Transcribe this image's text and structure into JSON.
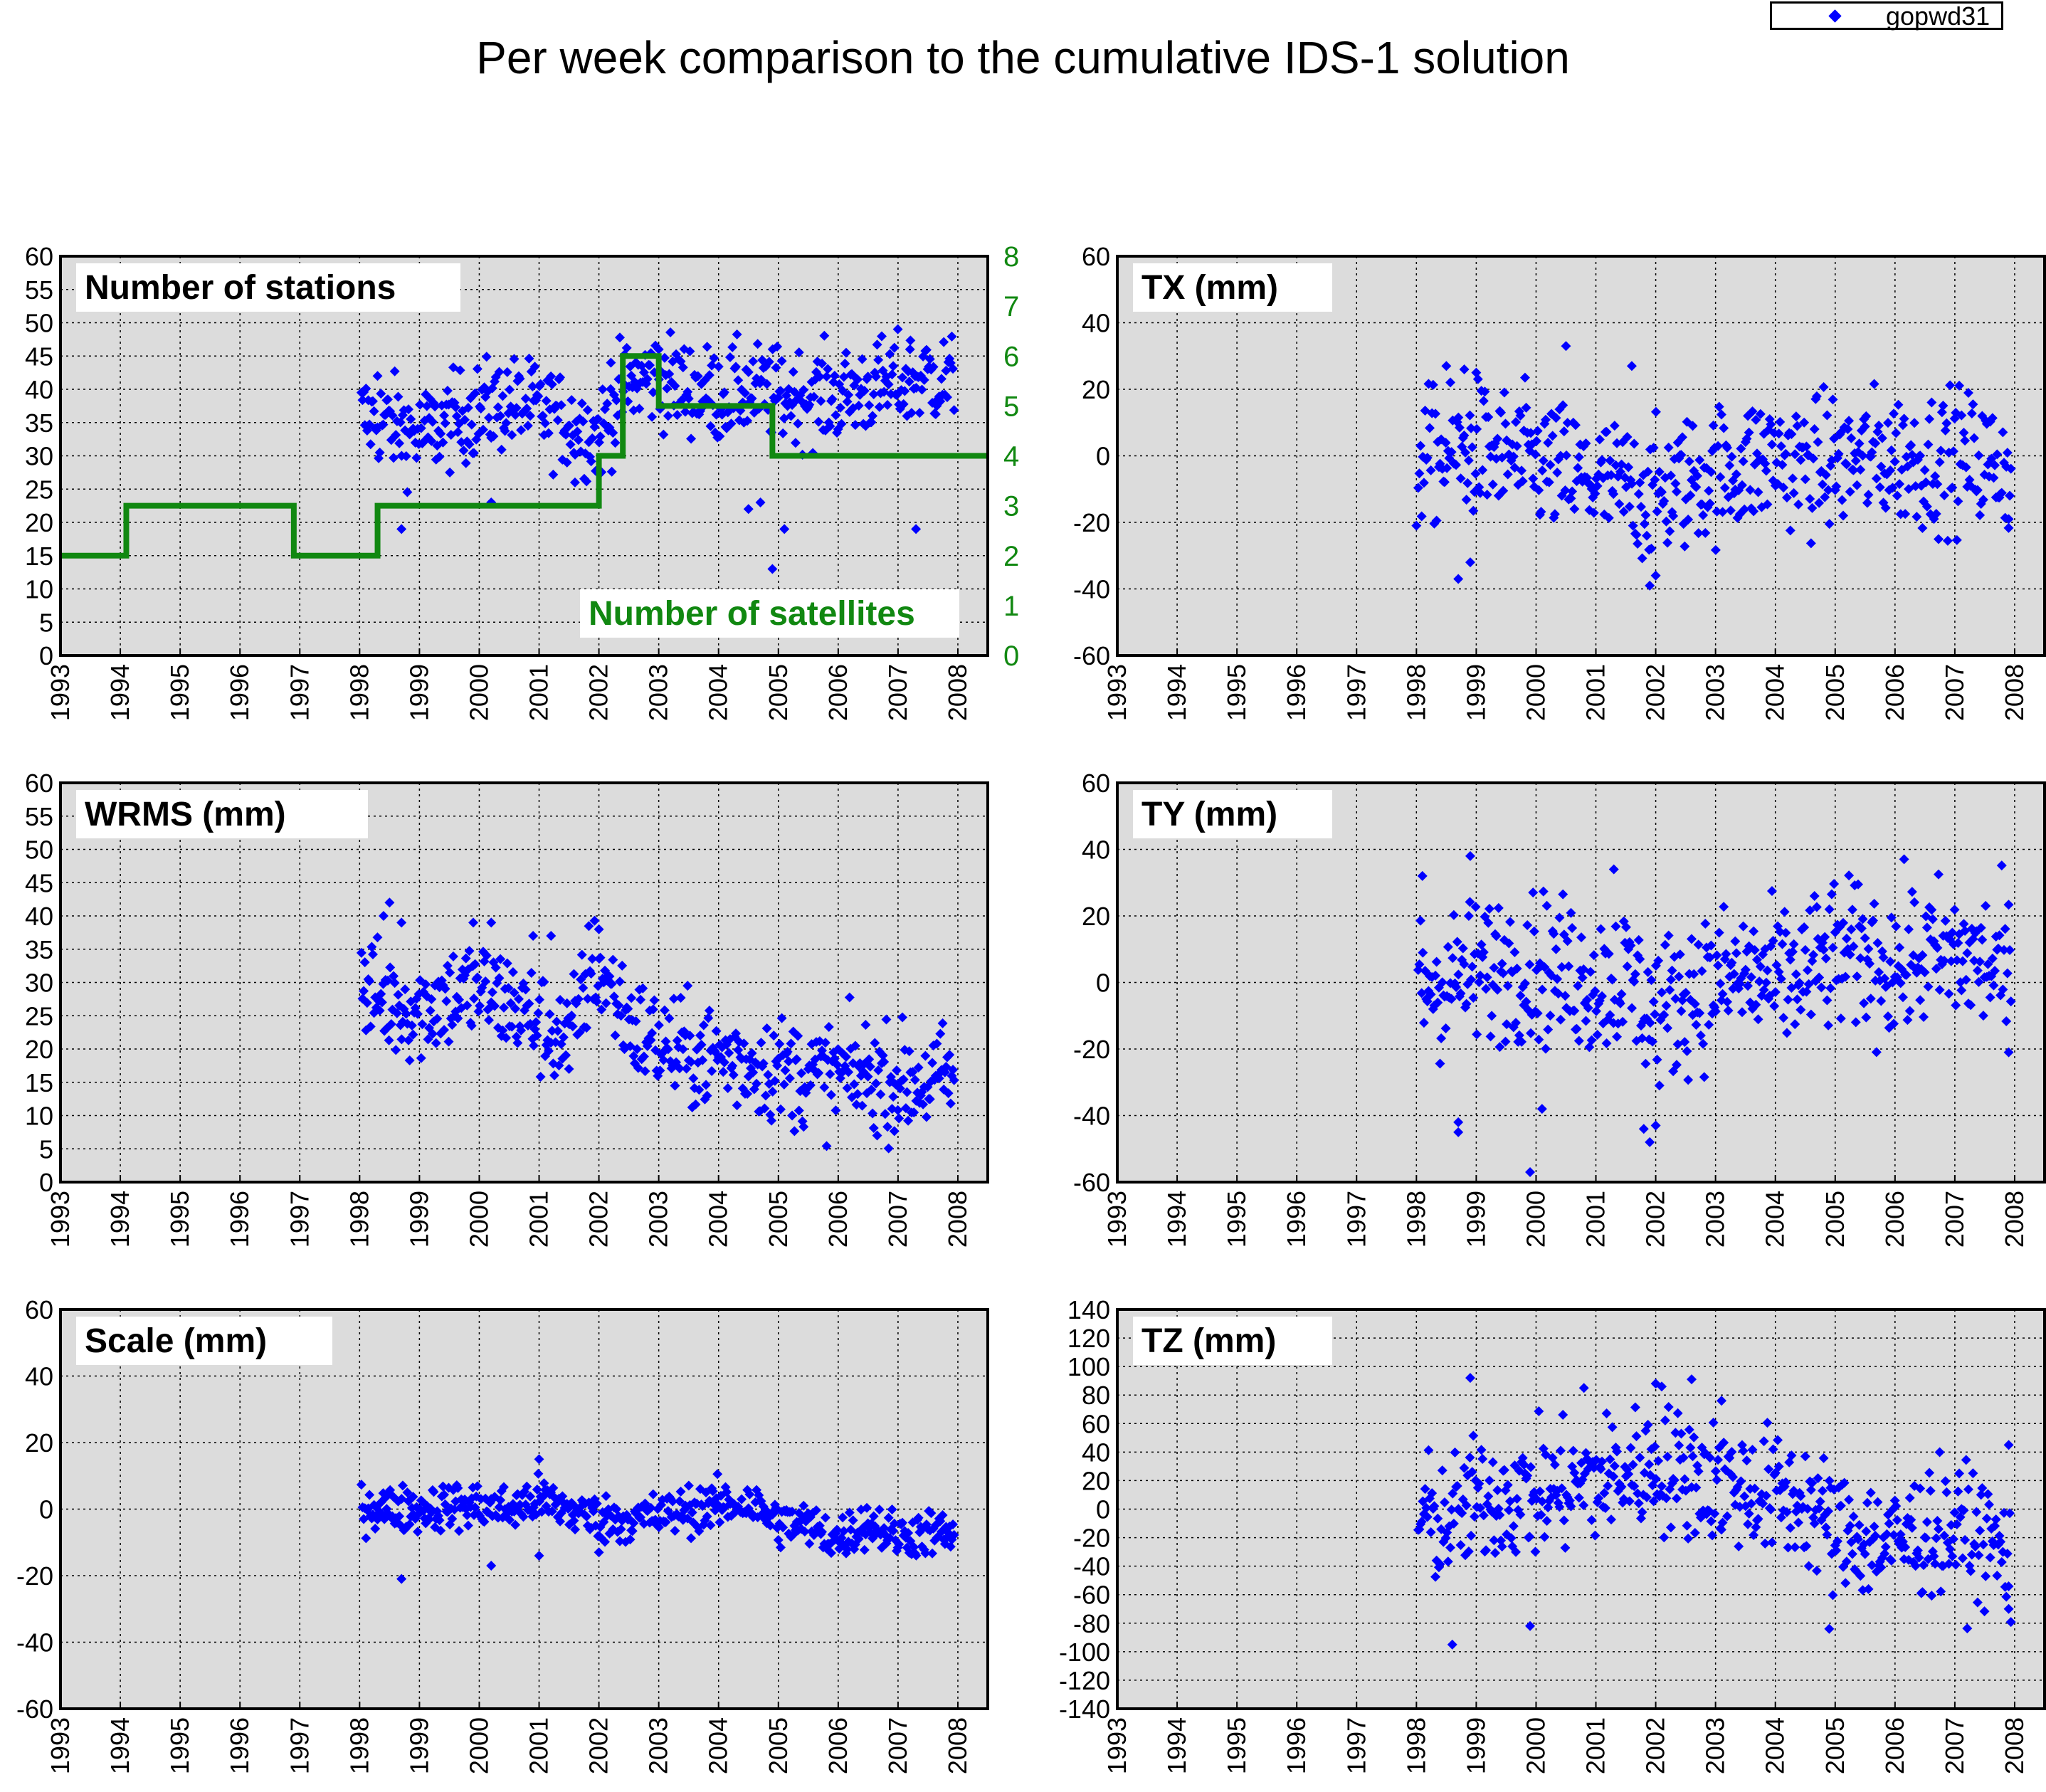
{
  "title": "Per week comparison to the cumulative IDS-1 solution",
  "legend": {
    "label": "gopwd31",
    "marker_color": "#0000ff",
    "marker": "diamond"
  },
  "colors": {
    "series": "#0000ff",
    "satellites": "#118811",
    "plot_bg": "#dcdcdc",
    "grid": "#000000"
  },
  "chart_data": [
    {
      "type": "scatter",
      "label": "Number of stations",
      "xlim": [
        1993,
        2008.5
      ],
      "xticks": [
        "1993",
        "1994",
        "1995",
        "1996",
        "1997",
        "1998",
        "1999",
        "2000",
        "2001",
        "2002",
        "2003",
        "2004",
        "2005",
        "2006",
        "2007",
        "2008"
      ],
      "ylim": [
        0,
        60
      ],
      "yticks": [
        "0",
        "5",
        "10",
        "15",
        "20",
        "25",
        "30",
        "35",
        "40",
        "45",
        "50",
        "55",
        "60"
      ],
      "trend": [
        [
          1998.0,
          36
        ],
        [
          1998.5,
          35
        ],
        [
          1999.0,
          33
        ],
        [
          1999.5,
          35
        ],
        [
          2000.0,
          37
        ],
        [
          2000.5,
          38
        ],
        [
          2001.0,
          37
        ],
        [
          2001.5,
          35
        ],
        [
          2002.0,
          33
        ],
        [
          2002.4,
          40
        ],
        [
          2002.8,
          42
        ],
        [
          2003.2,
          41
        ],
        [
          2003.6,
          40
        ],
        [
          2004.0,
          39
        ],
        [
          2004.5,
          40
        ],
        [
          2005.0,
          39
        ],
        [
          2005.5,
          39
        ],
        [
          2006.0,
          39
        ],
        [
          2006.5,
          40
        ],
        [
          2007.0,
          41
        ],
        [
          2007.5,
          42
        ],
        [
          2007.9,
          41
        ]
      ],
      "scatter_spread": 3.5,
      "outliers": [
        [
          1998.7,
          19
        ],
        [
          2000.2,
          23
        ],
        [
          2004.5,
          22
        ],
        [
          2004.7,
          23
        ],
        [
          2004.9,
          13
        ],
        [
          2005.1,
          19
        ],
        [
          2007.3,
          19
        ],
        [
          2001.6,
          26
        ],
        [
          1998.3,
          42
        ],
        [
          2002.2,
          44
        ],
        [
          2003.0,
          46
        ],
        [
          2007.2,
          46
        ]
      ],
      "secondary": {
        "label": "Number of satellites",
        "ylim": [
          0,
          8
        ],
        "yticks": [
          "0",
          "1",
          "2",
          "3",
          "4",
          "5",
          "6",
          "7",
          "8"
        ],
        "steps": [
          [
            1993.0,
            2
          ],
          [
            1994.1,
            3
          ],
          [
            1996.9,
            2
          ],
          [
            1998.3,
            3
          ],
          [
            2002.0,
            4
          ],
          [
            2002.4,
            6
          ],
          [
            2003.0,
            5
          ],
          [
            2004.9,
            4
          ],
          [
            2008.5,
            4
          ]
        ]
      }
    },
    {
      "type": "scatter",
      "label": "TX (mm)",
      "xlim": [
        1993,
        2008.5
      ],
      "xticks": [
        "1993",
        "1994",
        "1995",
        "1996",
        "1997",
        "1998",
        "1999",
        "2000",
        "2001",
        "2002",
        "2003",
        "2004",
        "2005",
        "2006",
        "2007",
        "2008"
      ],
      "ylim": [
        -60,
        60
      ],
      "yticks": [
        "-60",
        "-40",
        "-20",
        "0",
        "20",
        "40",
        "60"
      ],
      "trend": [
        [
          1998.0,
          0
        ],
        [
          1998.5,
          0
        ],
        [
          1999.0,
          2
        ],
        [
          1999.5,
          0
        ],
        [
          2000.0,
          -2
        ],
        [
          2000.5,
          -5
        ],
        [
          2001.0,
          -8
        ],
        [
          2001.5,
          -10
        ],
        [
          2002.0,
          -12
        ],
        [
          2002.5,
          -8
        ],
        [
          2003.0,
          -5
        ],
        [
          2003.5,
          -3
        ],
        [
          2004.0,
          0
        ],
        [
          2004.5,
          -3
        ],
        [
          2005.0,
          -2
        ],
        [
          2005.5,
          -1
        ],
        [
          2006.0,
          0
        ],
        [
          2006.5,
          -2
        ],
        [
          2007.0,
          0
        ],
        [
          2007.5,
          -2
        ],
        [
          2007.9,
          -3
        ]
      ],
      "scatter_spread": 10,
      "outliers": [
        [
          1998.5,
          27
        ],
        [
          1998.8,
          26
        ],
        [
          1999.0,
          25
        ],
        [
          2000.5,
          33
        ],
        [
          2001.6,
          27
        ],
        [
          1998.7,
          -37
        ],
        [
          1998.9,
          -32
        ],
        [
          2001.9,
          -39
        ],
        [
          2002.0,
          -36
        ],
        [
          1998.0,
          -21
        ],
        [
          2007.9,
          -19
        ]
      ]
    },
    {
      "type": "scatter",
      "label": "WRMS (mm)",
      "xlim": [
        1993,
        2008.5
      ],
      "xticks": [
        "1993",
        "1994",
        "1995",
        "1996",
        "1997",
        "1998",
        "1999",
        "2000",
        "2001",
        "2002",
        "2003",
        "2004",
        "2005",
        "2006",
        "2007",
        "2008"
      ],
      "ylim": [
        0,
        60
      ],
      "yticks": [
        "0",
        "5",
        "10",
        "15",
        "20",
        "25",
        "30",
        "35",
        "40",
        "45",
        "50",
        "55",
        "60"
      ],
      "trend": [
        [
          1998.0,
          29
        ],
        [
          1998.5,
          27
        ],
        [
          1999.0,
          26
        ],
        [
          1999.5,
          28
        ],
        [
          2000.0,
          29
        ],
        [
          2000.5,
          27
        ],
        [
          2001.0,
          24
        ],
        [
          2001.5,
          21
        ],
        [
          2001.9,
          33
        ],
        [
          2002.2,
          29
        ],
        [
          2002.6,
          23
        ],
        [
          2003.0,
          21
        ],
        [
          2003.5,
          19
        ],
        [
          2004.0,
          19
        ],
        [
          2004.5,
          18
        ],
        [
          2005.0,
          17
        ],
        [
          2005.5,
          16
        ],
        [
          2006.0,
          16
        ],
        [
          2006.5,
          16
        ],
        [
          2007.0,
          15
        ],
        [
          2007.5,
          15
        ],
        [
          2007.9,
          16
        ]
      ],
      "scatter_spread": 4,
      "outliers": [
        [
          1998.4,
          40
        ],
        [
          1998.5,
          42
        ],
        [
          1998.7,
          39
        ],
        [
          1999.9,
          39
        ],
        [
          2000.2,
          39
        ],
        [
          2000.9,
          37
        ],
        [
          2001.2,
          37
        ],
        [
          2002.0,
          38
        ],
        [
          2001.5,
          17
        ],
        [
          2006.9,
          11
        ]
      ]
    },
    {
      "type": "scatter",
      "label": "TY (mm)",
      "xlim": [
        1993,
        2008.5
      ],
      "xticks": [
        "1993",
        "1994",
        "1995",
        "1996",
        "1997",
        "1998",
        "1999",
        "2000",
        "2001",
        "2002",
        "2003",
        "2004",
        "2005",
        "2006",
        "2007",
        "2008"
      ],
      "ylim": [
        -60,
        60
      ],
      "yticks": [
        "-60",
        "-40",
        "-20",
        "0",
        "20",
        "40",
        "60"
      ],
      "trend": [
        [
          1998.0,
          0
        ],
        [
          1998.5,
          0
        ],
        [
          1999.0,
          3
        ],
        [
          1999.5,
          5
        ],
        [
          2000.0,
          5
        ],
        [
          2000.5,
          3
        ],
        [
          2001.0,
          0
        ],
        [
          2001.5,
          2
        ],
        [
          2002.0,
          -10
        ],
        [
          2002.5,
          -3
        ],
        [
          2003.0,
          0
        ],
        [
          2003.5,
          2
        ],
        [
          2004.0,
          0
        ],
        [
          2004.5,
          3
        ],
        [
          2005.0,
          8
        ],
        [
          2005.5,
          8
        ],
        [
          2006.0,
          5
        ],
        [
          2006.5,
          8
        ],
        [
          2007.0,
          8
        ],
        [
          2007.5,
          6
        ],
        [
          2007.9,
          3
        ]
      ],
      "scatter_spread": 11,
      "outliers": [
        [
          1998.1,
          32
        ],
        [
          1998.9,
          38
        ],
        [
          2001.3,
          34
        ],
        [
          1998.7,
          -42
        ],
        [
          1998.7,
          -45
        ],
        [
          1999.9,
          -57
        ],
        [
          2001.9,
          -48
        ],
        [
          2001.8,
          -44
        ],
        [
          2002.0,
          -43
        ],
        [
          2000.1,
          -38
        ],
        [
          2007.9,
          -21
        ]
      ]
    },
    {
      "type": "scatter",
      "label": "Scale (mm)",
      "xlim": [
        1993,
        2008.5
      ],
      "xticks": [
        "1993",
        "1994",
        "1995",
        "1996",
        "1997",
        "1998",
        "1999",
        "2000",
        "2001",
        "2002",
        "2003",
        "2004",
        "2005",
        "2006",
        "2007",
        "2008"
      ],
      "ylim": [
        -60,
        60
      ],
      "yticks": [
        "-60",
        "-40",
        "-20",
        "0",
        "20",
        "40",
        "60"
      ],
      "trend": [
        [
          1998.0,
          1
        ],
        [
          1998.5,
          0
        ],
        [
          1999.0,
          0
        ],
        [
          1999.5,
          1
        ],
        [
          2000.0,
          1
        ],
        [
          2000.5,
          0
        ],
        [
          2001.0,
          3
        ],
        [
          2001.5,
          0
        ],
        [
          2002.0,
          -3
        ],
        [
          2002.5,
          -3
        ],
        [
          2003.0,
          -2
        ],
        [
          2003.5,
          0
        ],
        [
          2004.0,
          1
        ],
        [
          2004.5,
          2
        ],
        [
          2005.0,
          -4
        ],
        [
          2005.5,
          -5
        ],
        [
          2006.0,
          -9
        ],
        [
          2006.5,
          -4
        ],
        [
          2007.0,
          -8
        ],
        [
          2007.5,
          -7
        ],
        [
          2007.9,
          -8
        ]
      ],
      "scatter_spread": 3.5,
      "outliers": [
        [
          1998.7,
          -21
        ],
        [
          2000.2,
          -17
        ],
        [
          2001.0,
          15
        ],
        [
          2001.0,
          -14
        ],
        [
          2002.0,
          -13
        ]
      ]
    },
    {
      "type": "scatter",
      "label": "TZ (mm)",
      "xlim": [
        1993,
        2008.5
      ],
      "xticks": [
        "1993",
        "1994",
        "1995",
        "1996",
        "1997",
        "1998",
        "1999",
        "2000",
        "2001",
        "2002",
        "2003",
        "2004",
        "2005",
        "2006",
        "2007",
        "2008"
      ],
      "ylim": [
        -140,
        140
      ],
      "yticks": [
        "-140",
        "-120",
        "-100",
        "-80",
        "-60",
        "-40",
        "-20",
        "0",
        "20",
        "40",
        "60",
        "80",
        "100",
        "120",
        "140"
      ],
      "trend": [
        [
          1998.0,
          -5
        ],
        [
          1998.5,
          -10
        ],
        [
          1999.0,
          5
        ],
        [
          1999.5,
          10
        ],
        [
          2000.0,
          10
        ],
        [
          2000.5,
          15
        ],
        [
          2001.0,
          20
        ],
        [
          2001.5,
          25
        ],
        [
          2002.0,
          30
        ],
        [
          2002.5,
          25
        ],
        [
          2003.0,
          20
        ],
        [
          2003.5,
          15
        ],
        [
          2004.0,
          10
        ],
        [
          2004.5,
          5
        ],
        [
          2005.0,
          -15
        ],
        [
          2005.5,
          -20
        ],
        [
          2006.0,
          -25
        ],
        [
          2006.5,
          -15
        ],
        [
          2007.0,
          -15
        ],
        [
          2007.5,
          -20
        ],
        [
          2007.9,
          -35
        ]
      ],
      "scatter_spread": 22,
      "outliers": [
        [
          1998.9,
          92
        ],
        [
          2002.0,
          88
        ],
        [
          2002.1,
          86
        ],
        [
          2002.6,
          91
        ],
        [
          2003.1,
          76
        ],
        [
          1998.6,
          -95
        ],
        [
          1999.9,
          -82
        ],
        [
          2004.9,
          -84
        ],
        [
          2007.9,
          -70
        ],
        [
          2007.9,
          45
        ],
        [
          2000.8,
          85
        ]
      ]
    }
  ]
}
